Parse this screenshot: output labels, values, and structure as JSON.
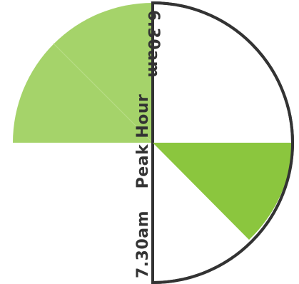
{
  "diagram": {
    "labels": {
      "top": "6.30am",
      "middle": "Peak Hour",
      "bottom": "7.30am"
    },
    "colors": {
      "light_green": "#a5d36a",
      "light_green_line": "#b7dc85",
      "dark_green": "#8bc63e",
      "outline": "#333333",
      "background": "#ffffff"
    }
  }
}
